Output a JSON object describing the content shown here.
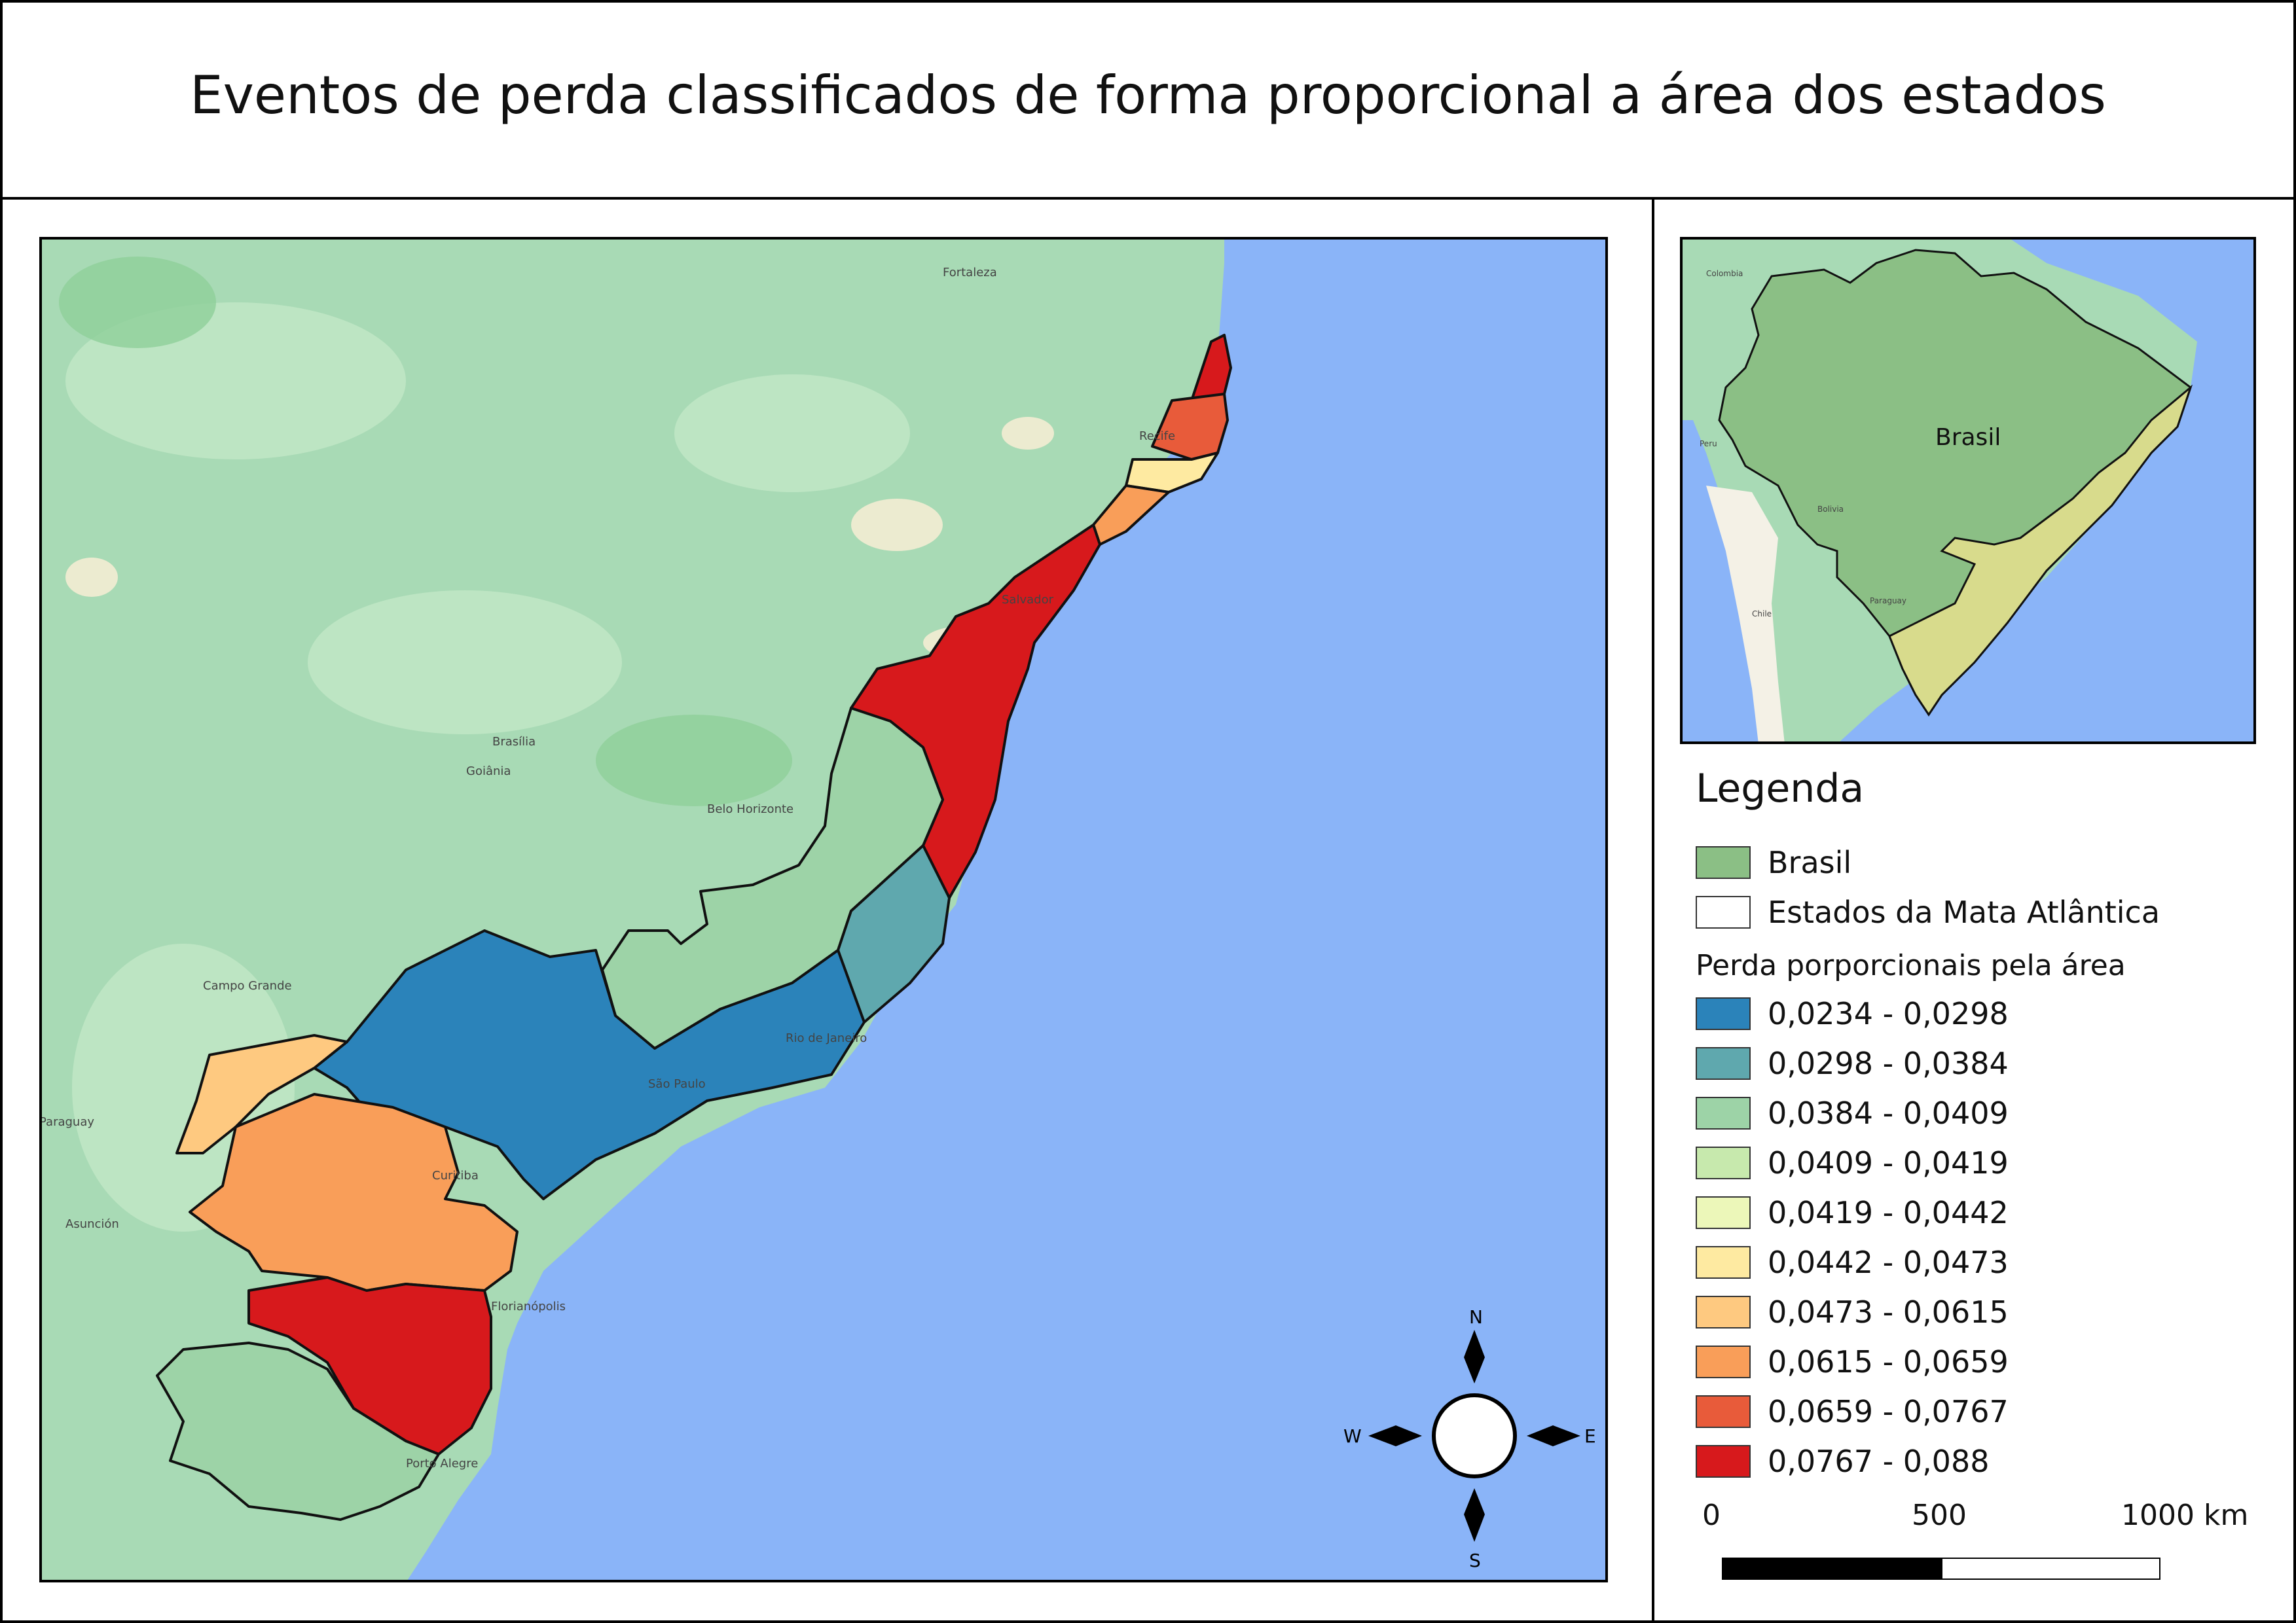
{
  "title": "Eventos de perda classificados de forma proporcional a área dos estados",
  "colors": {
    "ocean": "#8ab4f8",
    "land": "#a8dab5",
    "brasil": "#8bbf85",
    "mata_states": "#d8db8c"
  },
  "main_map": {
    "place_labels": [
      "Paraguay",
      "Brasília",
      "Goiânia",
      "Asunción",
      "Campo Grande",
      "Belo Horizonte",
      "Rio de Janeiro",
      "São Paulo",
      "Curitiba",
      "Florianópolis",
      "Porto Alegre",
      "Salvador",
      "Recife",
      "Fortaleza"
    ],
    "states": [
      {
        "class": 9,
        "color": "#d7191c"
      },
      {
        "class": 8,
        "color": "#e85b3a"
      },
      {
        "class": 5,
        "color": "#feeaa1"
      },
      {
        "class": 7,
        "color": "#f99e59"
      },
      {
        "class": 9,
        "color": "#d7191c"
      },
      {
        "class": 2,
        "color": "#9dd3a7"
      },
      {
        "class": 1,
        "color": "#5fa8ae"
      },
      {
        "class": 0,
        "color": "#2b83ba"
      },
      {
        "class": 6,
        "color": "#fec980"
      },
      {
        "class": 7,
        "color": "#f99e59"
      },
      {
        "class": 9,
        "color": "#d7191c"
      },
      {
        "class": 2,
        "color": "#9dd3a7"
      }
    ]
  },
  "compass": {
    "n": "N",
    "s": "S",
    "e": "E",
    "w": "W"
  },
  "inset": {
    "label": "Brasil",
    "place_labels": [
      "Colombia",
      "Peru",
      "Bolivia",
      "Chile",
      "Paraguay"
    ]
  },
  "legend": {
    "title": "Legenda",
    "layers": [
      {
        "label": "Brasil",
        "color": "#8bbf85"
      },
      {
        "label": "Estados da Mata Atlântica",
        "color": "#ffffff"
      }
    ],
    "classes_title": "Perda porporcionais pela área",
    "classes": [
      {
        "label": "0,0234 - 0,0298",
        "color": "#2b83ba"
      },
      {
        "label": "0,0298 - 0,0384",
        "color": "#5fa8ae"
      },
      {
        "label": "0,0384 - 0,0409",
        "color": "#9dd3a7"
      },
      {
        "label": "0,0409 - 0,0419",
        "color": "#c7e9ad"
      },
      {
        "label": "0,0419 - 0,0442",
        "color": "#ecf7b9"
      },
      {
        "label": "0,0442 - 0,0473",
        "color": "#feeaa1"
      },
      {
        "label": "0,0473 - 0,0615",
        "color": "#fec980"
      },
      {
        "label": "0,0615 - 0,0659",
        "color": "#f99e59"
      },
      {
        "label": "0,0659 - 0,0767",
        "color": "#e85b3a"
      },
      {
        "label": "0,0767 - 0,088",
        "color": "#d7191c"
      }
    ]
  },
  "scalebar": {
    "labels": [
      "0",
      "500",
      "1000 km"
    ]
  }
}
